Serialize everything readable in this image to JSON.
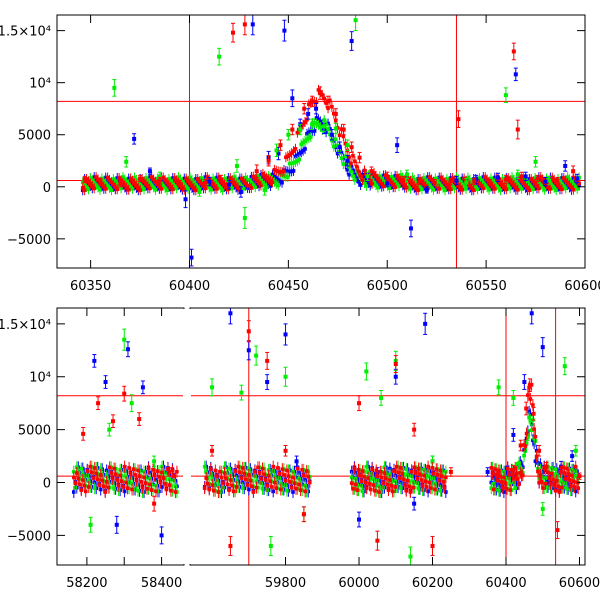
{
  "chart_data": [
    {
      "type": "scatter",
      "panel": "top",
      "xlim": [
        60333,
        60600
      ],
      "ylim": [
        -7800,
        16500
      ],
      "x_ticks": [
        60350,
        60400,
        60450,
        60500,
        60550,
        60600
      ],
      "x_tick_labels": [
        "60350",
        "60400",
        "60450",
        "60500",
        "60550",
        "60600"
      ],
      "y_ticks": [
        -5000,
        0,
        5000,
        10000,
        15000
      ],
      "y_tick_labels": [
        "−5000",
        "0",
        "5000",
        "10⁴",
        "1.5×10⁴"
      ],
      "reference_hlines": [
        8200,
        600
      ],
      "reference_vlines": [
        60400,
        60535
      ],
      "series": [
        {
          "color": "#0000ff",
          "x": [
            60372,
            60380,
            60398,
            60401,
            60410,
            60420,
            60426,
            60432,
            60440,
            60445,
            60448,
            60452,
            60456,
            60460,
            60464,
            60468,
            60472,
            60476,
            60480,
            60482,
            60490,
            60500,
            60505,
            60512,
            60520,
            60535,
            60545,
            60556,
            60565,
            60570,
            60580,
            60590,
            60596
          ],
          "y": [
            4600,
            1500,
            -1200,
            -6800,
            500,
            200,
            -500,
            15600,
            2800,
            3200,
            15000,
            8500,
            6000,
            7000,
            7500,
            5600,
            5000,
            3800,
            2500,
            14000,
            900,
            300,
            4000,
            -4000,
            -300,
            600,
            700,
            900,
            10800,
            1000,
            500,
            2000,
            800
          ],
          "yerr": [
            500,
            300,
            800,
            800,
            400,
            400,
            500,
            1000,
            600,
            600,
            1000,
            800,
            500,
            500,
            500,
            500,
            500,
            500,
            500,
            900,
            400,
            300,
            700,
            800,
            300,
            400,
            400,
            400,
            600,
            400,
            400,
            500,
            400
          ]
        },
        {
          "color": "#00ee00",
          "x": [
            60362,
            60368,
            60385,
            60405,
            60415,
            60424,
            60428,
            60438,
            60444,
            60450,
            60456,
            60462,
            60468,
            60474,
            60480,
            60484,
            60490,
            60510,
            60525,
            60540,
            60560,
            60566,
            60575,
            60582
          ],
          "y": [
            9500,
            2400,
            1000,
            -500,
            12500,
            2000,
            -3000,
            -300,
            3500,
            5000,
            5500,
            6000,
            5800,
            5600,
            4000,
            16000,
            1000,
            1200,
            500,
            400,
            8800,
            1200,
            2400,
            600
          ],
          "yerr": [
            800,
            500,
            400,
            400,
            800,
            600,
            1000,
            500,
            600,
            500,
            500,
            500,
            500,
            500,
            500,
            1000,
            400,
            400,
            400,
            400,
            700,
            400,
            500,
            400
          ]
        },
        {
          "color": "#ff0000",
          "x": [
            60347,
            60355,
            60365,
            60375,
            60385,
            60395,
            60408,
            60416,
            60422,
            60428,
            60434,
            60440,
            60446,
            60452,
            60458,
            60462,
            60466,
            60470,
            60474,
            60478,
            60482,
            60486,
            60492,
            60500,
            60508,
            60516,
            60524,
            60532,
            60536,
            60544,
            60552,
            60560,
            60564,
            60566,
            60568,
            60576,
            60586,
            60594
          ],
          "y": [
            700,
            500,
            300,
            800,
            600,
            300,
            400,
            700,
            14800,
            15600,
            1500,
            2500,
            4000,
            5500,
            7500,
            8200,
            9000,
            8200,
            7000,
            5500,
            3800,
            2800,
            1500,
            1000,
            700,
            500,
            400,
            500,
            6500,
            500,
            400,
            700,
            13000,
            5500,
            1000,
            800,
            600,
            1500
          ],
          "yerr": [
            300,
            300,
            300,
            300,
            300,
            300,
            300,
            400,
            900,
            1000,
            600,
            500,
            500,
            500,
            500,
            500,
            600,
            500,
            500,
            500,
            500,
            500,
            400,
            400,
            300,
            300,
            300,
            300,
            800,
            300,
            300,
            400,
            800,
            900,
            400,
            300,
            300,
            500
          ]
        }
      ]
    },
    {
      "type": "scatter",
      "panel": "bottom",
      "xlim": [
        58120,
        60615
      ],
      "ylim": [
        -7800,
        16500
      ],
      "x_axis_break": [
        58460,
        59540
      ],
      "x_ticks": [
        58200,
        58300,
        58400,
        59800,
        60000,
        60200,
        60400,
        60600
      ],
      "x_tick_labels": [
        "58200",
        "",
        "58400",
        "59800",
        "60000",
        "60200",
        "60400",
        "60600"
      ],
      "y_ticks": [
        -5000,
        0,
        5000,
        10000,
        15000
      ],
      "y_tick_labels": [
        "−5000",
        "0",
        "5000",
        "10⁴",
        "1.5×10⁴"
      ],
      "reference_hlines": [
        8200,
        600
      ],
      "reference_vlines": [
        59700,
        60400,
        60535
      ],
      "series": [
        {
          "color": "#0000ff",
          "x": [
            58220,
            58250,
            58280,
            58310,
            58350,
            58400,
            59650,
            59700,
            59750,
            59800,
            59830,
            60000,
            60050,
            60100,
            60150,
            60180,
            60200,
            60350,
            60420,
            60450,
            60470,
            60500,
            60550,
            60580
          ],
          "y": [
            11500,
            9500,
            -4000,
            12600,
            9000,
            -5000,
            16000,
            12500,
            9500,
            14000,
            2000,
            -3500,
            1000,
            10000,
            -2000,
            15000,
            2000,
            1000,
            4500,
            9500,
            16000,
            12800,
            1500,
            2500
          ],
          "yerr": [
            600,
            600,
            800,
            700,
            600,
            800,
            1000,
            900,
            700,
            1000,
            500,
            700,
            400,
            700,
            600,
            1000,
            500,
            400,
            600,
            700,
            1000,
            900,
            500,
            500
          ]
        },
        {
          "color": "#00ee00",
          "x": [
            58210,
            58260,
            58300,
            58320,
            58380,
            59600,
            59680,
            59720,
            59760,
            59800,
            59850,
            60020,
            60060,
            60100,
            60140,
            60200,
            60380,
            60420,
            60460,
            60500,
            60560,
            60590
          ],
          "y": [
            -4000,
            5000,
            13500,
            7500,
            2000,
            9000,
            8500,
            12000,
            -6000,
            10000,
            -3000,
            10500,
            8000,
            11500,
            -7000,
            2000,
            9000,
            8000,
            4500,
            -2500,
            11000,
            3000
          ],
          "yerr": [
            700,
            600,
            1000,
            800,
            500,
            800,
            700,
            900,
            900,
            900,
            700,
            800,
            700,
            900,
            900,
            500,
            700,
            700,
            500,
            600,
            800,
            500
          ]
        },
        {
          "color": "#ff0000",
          "x": [
            58190,
            58230,
            58270,
            58300,
            58340,
            58380,
            58420,
            59600,
            59650,
            59700,
            59750,
            59800,
            59850,
            60000,
            60050,
            60100,
            60150,
            60200,
            60250,
            60380,
            60420,
            60440,
            60455,
            60465,
            60475,
            60490,
            60510,
            60540,
            60570,
            60600
          ],
          "y": [
            4600,
            7500,
            5800,
            8400,
            6000,
            -2000,
            1000,
            3000,
            -6000,
            14300,
            11500,
            3000,
            -3000,
            7500,
            -5500,
            11200,
            5000,
            -6000,
            1000,
            800,
            1200,
            3500,
            7000,
            9200,
            6500,
            3000,
            1500,
            -4500,
            800,
            600
          ],
          "yerr": [
            600,
            600,
            600,
            700,
            600,
            700,
            400,
            500,
            900,
            1000,
            800,
            500,
            700,
            700,
            900,
            800,
            600,
            900,
            400,
            300,
            400,
            500,
            600,
            600,
            600,
            500,
            400,
            800,
            400,
            300
          ]
        }
      ]
    }
  ]
}
